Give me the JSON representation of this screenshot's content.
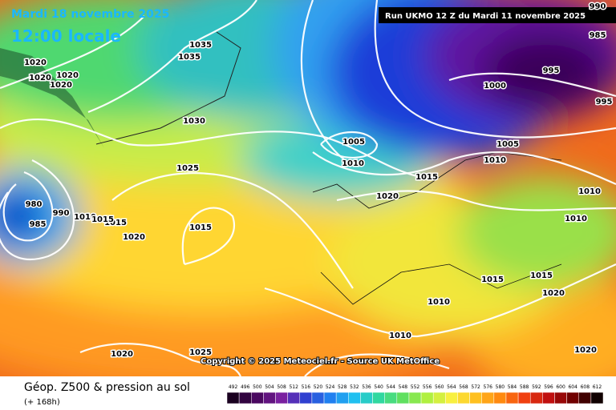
{
  "header": {
    "date": "Mardi 18 novembre 2025",
    "time": "12:00 locale",
    "run": "Run UKMO 12 Z du Mardi 11 novembre 2025"
  },
  "copyright": "Copyright © 2025 Meteociel.fr - Source UK MetOffice",
  "footer": {
    "title": "Géop. Z500 & pression au sol",
    "lead": "(+ 168h)"
  },
  "isobar_labels": [
    1035,
    1035,
    1020,
    1020,
    1020,
    1020,
    1030,
    1025,
    1005,
    1010,
    1015,
    1020,
    980,
    985,
    990,
    1010,
    1015,
    1015,
    1020,
    1015,
    985,
    995,
    1000,
    995,
    1005,
    1010,
    1010,
    1010,
    1015,
    1015,
    1020,
    1010,
    1010,
    1020,
    1025,
    1020,
    990
  ],
  "scale": [
    492,
    496,
    500,
    504,
    508,
    512,
    516,
    520,
    524,
    528,
    532,
    536,
    540,
    544,
    548,
    552,
    556,
    560,
    564,
    568,
    572,
    576,
    580,
    584,
    588,
    592,
    596,
    600,
    604,
    608,
    612
  ]
}
